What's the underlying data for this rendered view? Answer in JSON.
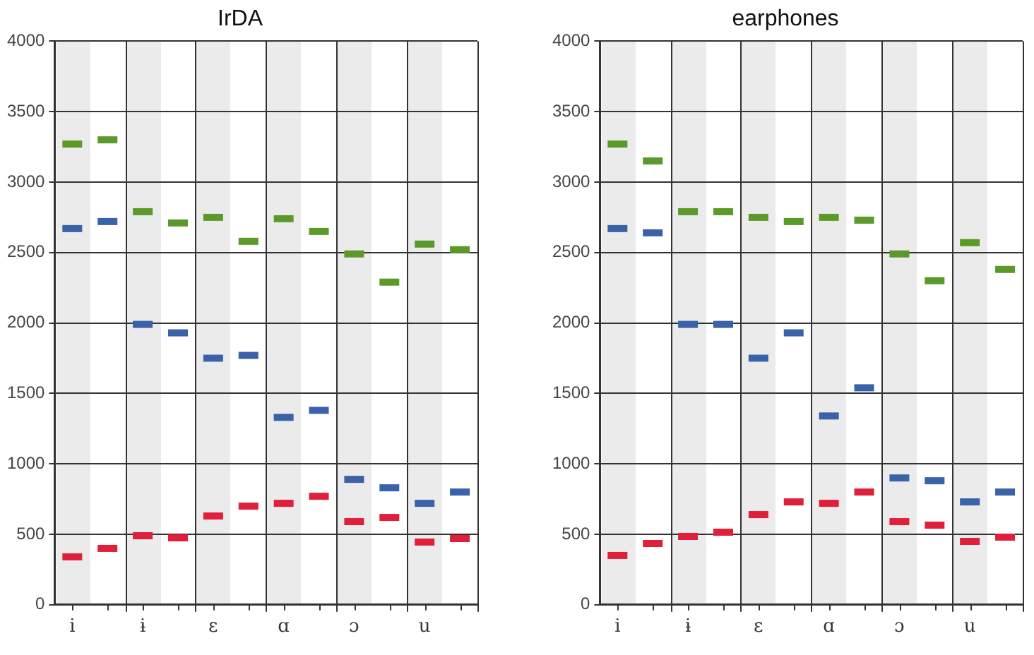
{
  "chart_data": [
    {
      "type": "scatter",
      "title": "IrDA",
      "categories": [
        "i",
        null,
        "ɨ",
        null,
        "ɛ",
        null,
        "ɑ",
        null,
        "ɔ",
        null,
        "u",
        null
      ],
      "ylim": [
        0,
        4000
      ],
      "yticks": [
        0,
        500,
        1000,
        1500,
        2000,
        2500,
        3000,
        3500,
        4000
      ],
      "grid": true,
      "legend": false,
      "series": [
        {
          "color": "#e0203a",
          "values": [
            340,
            400,
            490,
            475,
            630,
            700,
            720,
            770,
            590,
            620,
            445,
            470
          ]
        },
        {
          "color": "#3a62a8",
          "values": [
            2670,
            2720,
            1990,
            1930,
            1750,
            1770,
            1330,
            1380,
            890,
            830,
            720,
            800
          ]
        },
        {
          "color": "#5b9a2a",
          "values": [
            3270,
            3300,
            2790,
            2710,
            2750,
            2580,
            2740,
            2650,
            2490,
            2290,
            2560,
            2520
          ]
        }
      ]
    },
    {
      "type": "scatter",
      "title": "earphones",
      "categories": [
        "i",
        null,
        "ɨ",
        null,
        "ɛ",
        null,
        "ɑ",
        null,
        "ɔ",
        null,
        "u",
        null
      ],
      "ylim": [
        0,
        4000
      ],
      "yticks": [
        0,
        500,
        1000,
        1500,
        2000,
        2500,
        3000,
        3500,
        4000
      ],
      "grid": true,
      "legend": false,
      "series": [
        {
          "color": "#e0203a",
          "values": [
            350,
            435,
            485,
            515,
            640,
            730,
            720,
            800,
            590,
            565,
            450,
            480
          ]
        },
        {
          "color": "#3a62a8",
          "values": [
            2670,
            2640,
            1990,
            1990,
            1750,
            1930,
            1340,
            1540,
            900,
            880,
            730,
            800
          ]
        },
        {
          "color": "#5b9a2a",
          "values": [
            3270,
            3150,
            2790,
            2790,
            2750,
            2720,
            2750,
            2730,
            2490,
            2300,
            2570,
            2380
          ]
        }
      ]
    }
  ]
}
